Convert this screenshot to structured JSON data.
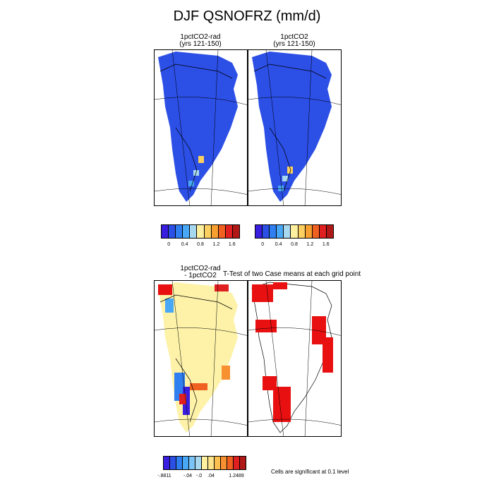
{
  "title": "DJF QSNOFRZ (mm/d)",
  "panels": {
    "top_left": {
      "line1": "1pctCO2-rad",
      "line2": "(yrs 121-150)"
    },
    "top_right": {
      "line1": "1pctCO2",
      "line2": "(yrs 121-150)"
    },
    "bottom_left": {
      "line1": "1pctCO2-rad",
      "line2": "- 1pctCO2"
    },
    "bottom_right": {
      "line1": "T-Test of two Case means at each grid point"
    }
  },
  "colorbars": {
    "top": {
      "colors": [
        "#3a1ee0",
        "#2c4fe6",
        "#2f7ff0",
        "#48a8f5",
        "#a8d8f0",
        "#fff0a0",
        "#fbd060",
        "#f7a030",
        "#f06020",
        "#e02020",
        "#b01818"
      ],
      "tick_labels": [
        "0",
        "0.4",
        "0.8",
        "1.2",
        "1.6"
      ]
    },
    "diff": {
      "colors": [
        "#3a1ee0",
        "#2c4fe6",
        "#2f7ff0",
        "#48a8f5",
        "#7cc4f5",
        "#a8d8f0",
        "#fff0a0",
        "#fde38a",
        "#fbc050",
        "#f79030",
        "#f06020",
        "#e02020",
        "#b01818"
      ],
      "tick_labels": [
        ".8811",
        "-.04",
        "-.0",
        ".04",
        "1.2489"
      ],
      "tick_minus_first": "-"
    }
  },
  "significance_note": "Cells are significant at 0.1 level",
  "colors": {
    "land_blue": "#2c4fe6",
    "diff_yellow": "#fdf2a8",
    "significant_red": "#e81010"
  }
}
